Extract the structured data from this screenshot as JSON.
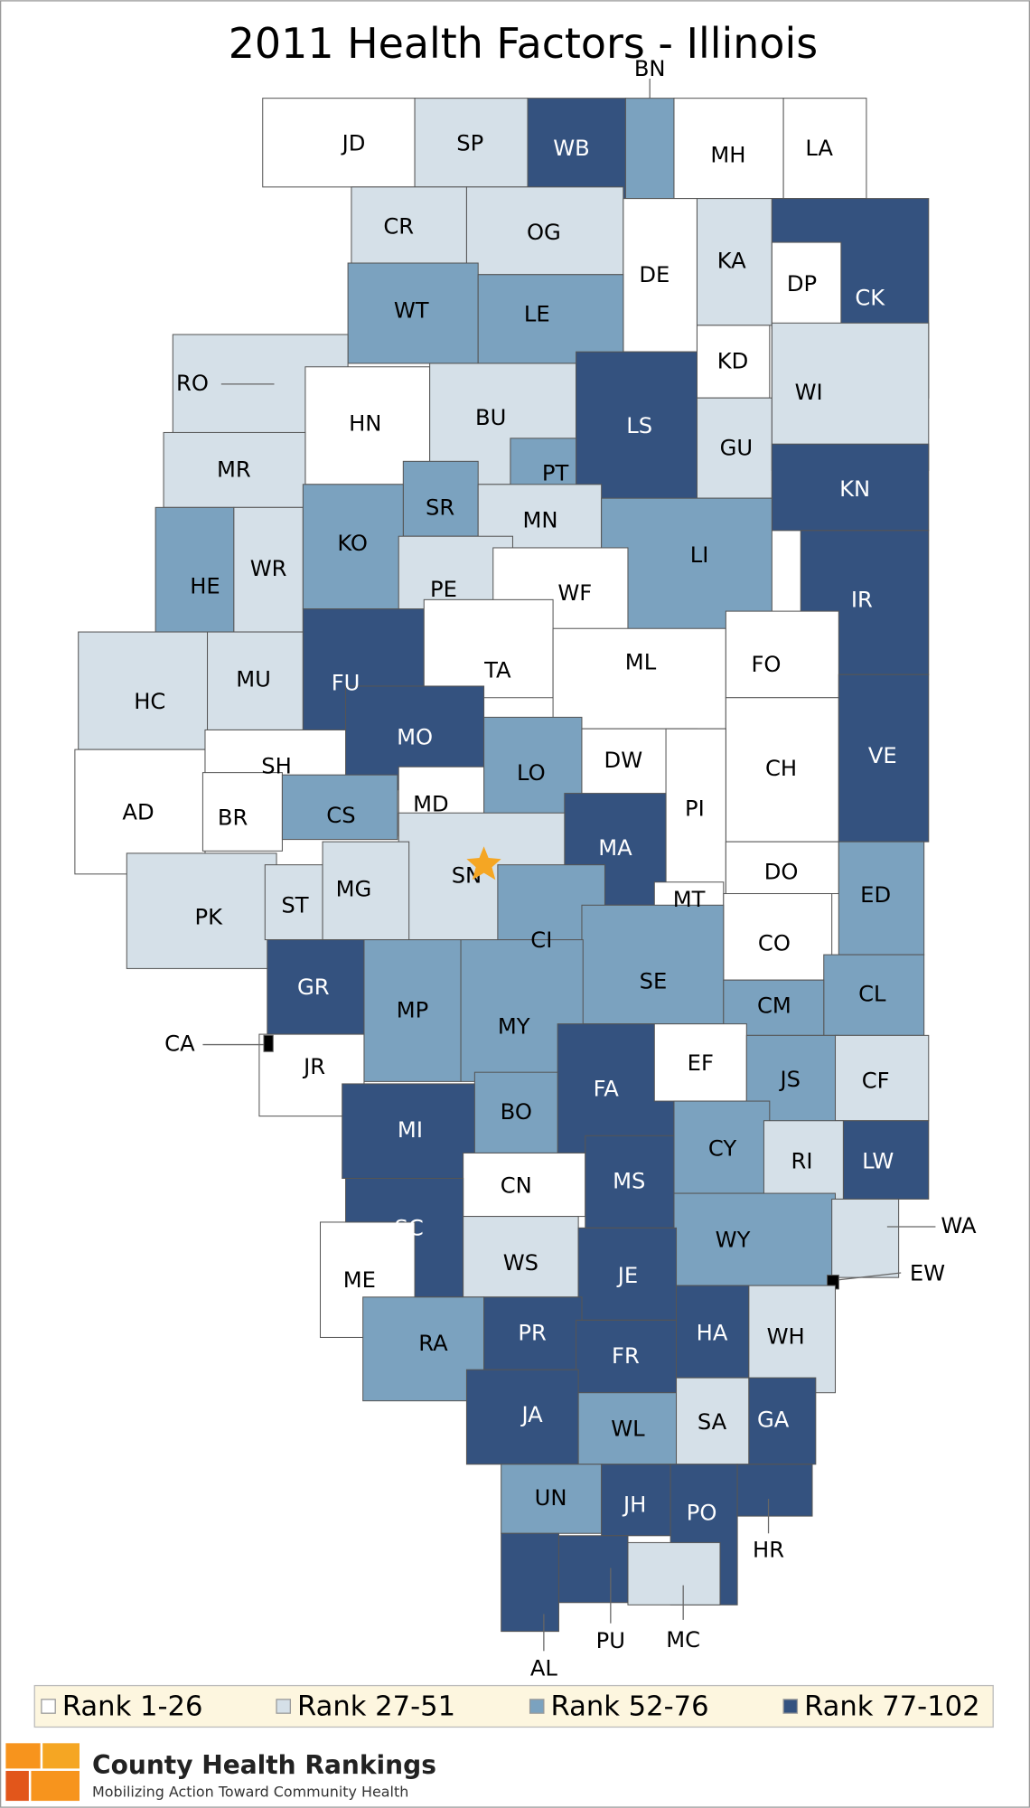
{
  "title": "2011 Health Factors - Illinois",
  "legend": [
    {
      "label": "Rank 1-26",
      "color": "#ffffff"
    },
    {
      "label": "Rank 27-51",
      "color": "#d5e0e8"
    },
    {
      "label": "Rank 52-76",
      "color": "#7ba2bf"
    },
    {
      "label": "Rank 77-102",
      "color": "#34527f"
    }
  ],
  "counties": [
    {
      "label": "JD",
      "tier": 0
    },
    {
      "label": "SP",
      "tier": 1
    },
    {
      "label": "WB",
      "tier": 3
    },
    {
      "label": "BN",
      "tier": 2
    },
    {
      "label": "MH",
      "tier": 0
    },
    {
      "label": "LA",
      "tier": 0
    },
    {
      "label": "CR",
      "tier": 1
    },
    {
      "label": "OG",
      "tier": 1
    },
    {
      "label": "DE",
      "tier": 0
    },
    {
      "label": "KA",
      "tier": 1
    },
    {
      "label": "CK",
      "tier": 3
    },
    {
      "label": "DP",
      "tier": 0
    },
    {
      "label": "WT",
      "tier": 2
    },
    {
      "label": "LE",
      "tier": 2
    },
    {
      "label": "KD",
      "tier": 0
    },
    {
      "label": "RO",
      "tier": 1
    },
    {
      "label": "HN",
      "tier": 0
    },
    {
      "label": "BU",
      "tier": 1
    },
    {
      "label": "LS",
      "tier": 3
    },
    {
      "label": "GU",
      "tier": 1
    },
    {
      "label": "WI",
      "tier": 1
    },
    {
      "label": "MR",
      "tier": 1
    },
    {
      "label": "PT",
      "tier": 2
    },
    {
      "label": "SR",
      "tier": 2
    },
    {
      "label": "KN",
      "tier": 3
    },
    {
      "label": "HE",
      "tier": 2
    },
    {
      "label": "WR",
      "tier": 1
    },
    {
      "label": "KO",
      "tier": 2
    },
    {
      "label": "MN",
      "tier": 1
    },
    {
      "label": "LI",
      "tier": 2
    },
    {
      "label": "IR",
      "tier": 3
    },
    {
      "label": "PE",
      "tier": 1
    },
    {
      "label": "WF",
      "tier": 0
    },
    {
      "label": "HC",
      "tier": 1
    },
    {
      "label": "MU",
      "tier": 1
    },
    {
      "label": "FU",
      "tier": 3
    },
    {
      "label": "TA",
      "tier": 0
    },
    {
      "label": "ML",
      "tier": 0
    },
    {
      "label": "FO",
      "tier": 0
    },
    {
      "label": "MO",
      "tier": 3
    },
    {
      "label": "LO",
      "tier": 2
    },
    {
      "label": "DW",
      "tier": 0
    },
    {
      "label": "CH",
      "tier": 0
    },
    {
      "label": "VE",
      "tier": 3
    },
    {
      "label": "AD",
      "tier": 0
    },
    {
      "label": "SH",
      "tier": 0
    },
    {
      "label": "BR",
      "tier": 0
    },
    {
      "label": "MD",
      "tier": 0
    },
    {
      "label": "PI",
      "tier": 0
    },
    {
      "label": "CS",
      "tier": 2
    },
    {
      "label": "MA",
      "tier": 3
    },
    {
      "label": "SN",
      "tier": 1
    },
    {
      "label": "DO",
      "tier": 0
    },
    {
      "label": "ED",
      "tier": 2
    },
    {
      "label": "PK",
      "tier": 1
    },
    {
      "label": "ST",
      "tier": 1
    },
    {
      "label": "MG",
      "tier": 1
    },
    {
      "label": "MT",
      "tier": 0
    },
    {
      "label": "CO",
      "tier": 0
    },
    {
      "label": "CI",
      "tier": 2
    },
    {
      "label": "SE",
      "tier": 2
    },
    {
      "label": "CL",
      "tier": 2
    },
    {
      "label": "CM",
      "tier": 2
    },
    {
      "label": "GR",
      "tier": 3
    },
    {
      "label": "MP",
      "tier": 2
    },
    {
      "label": "MY",
      "tier": 2
    },
    {
      "label": "JR",
      "tier": 0
    },
    {
      "label": "CA",
      "tier": null
    },
    {
      "label": "FA",
      "tier": 3
    },
    {
      "label": "EF",
      "tier": 0
    },
    {
      "label": "JS",
      "tier": 2
    },
    {
      "label": "CF",
      "tier": 1
    },
    {
      "label": "MI",
      "tier": 3
    },
    {
      "label": "BO",
      "tier": 2
    },
    {
      "label": "CY",
      "tier": 2
    },
    {
      "label": "RI",
      "tier": 1
    },
    {
      "label": "LW",
      "tier": 3
    },
    {
      "label": "CN",
      "tier": 0
    },
    {
      "label": "MS",
      "tier": 3
    },
    {
      "label": "SC",
      "tier": 3
    },
    {
      "label": "WY",
      "tier": 2
    },
    {
      "label": "WA",
      "tier": 1
    },
    {
      "label": "EW",
      "tier": null
    },
    {
      "label": "ME",
      "tier": 0
    },
    {
      "label": "WS",
      "tier": 1
    },
    {
      "label": "JE",
      "tier": 3
    },
    {
      "label": "RA",
      "tier": 2
    },
    {
      "label": "PR",
      "tier": 3
    },
    {
      "label": "FR",
      "tier": 3
    },
    {
      "label": "HA",
      "tier": 3
    },
    {
      "label": "WH",
      "tier": 1
    },
    {
      "label": "JA",
      "tier": 3
    },
    {
      "label": "WL",
      "tier": 2
    },
    {
      "label": "SA",
      "tier": 1
    },
    {
      "label": "GA",
      "tier": 3
    },
    {
      "label": "UN",
      "tier": 2
    },
    {
      "label": "JH",
      "tier": 3
    },
    {
      "label": "PO",
      "tier": 3
    },
    {
      "label": "HR",
      "tier": 3
    },
    {
      "label": "AL",
      "tier": 3
    },
    {
      "label": "PU",
      "tier": 3
    },
    {
      "label": "MC",
      "tier": 1
    }
  ],
  "logo": {
    "name": "County Health Rankings",
    "tagline": "Mobilizing Action Toward Community Health"
  }
}
